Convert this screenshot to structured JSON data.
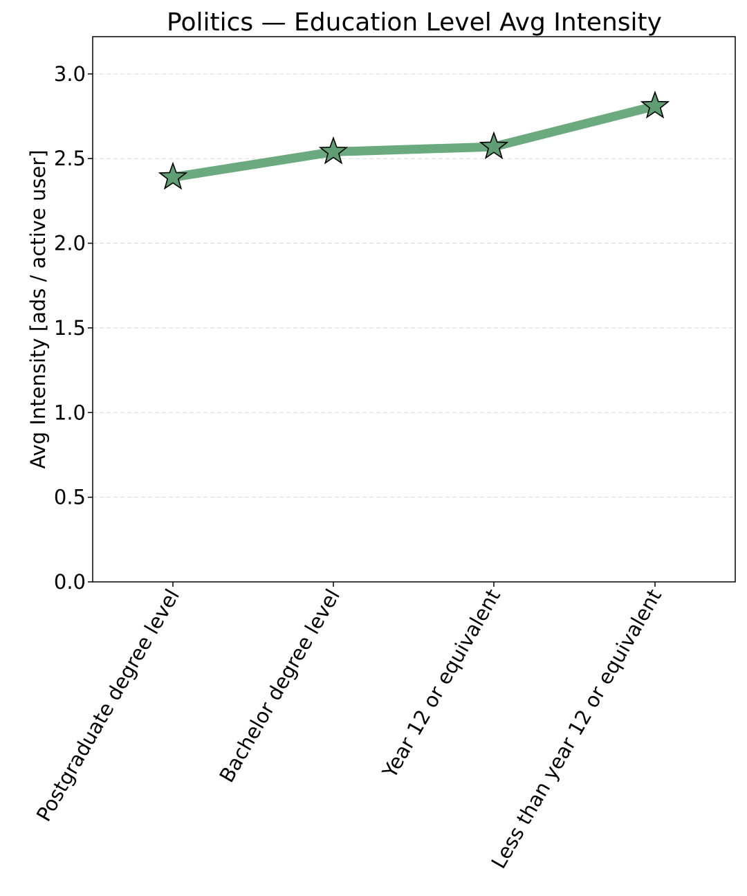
{
  "chart_data": {
    "type": "line",
    "title": "Politics — Education Level Avg Intensity",
    "xlabel": "",
    "ylabel": "Avg Intensity [ads / active user]",
    "categories": [
      "Postgraduate degree level",
      "Bachelor degree level",
      "Year 12 or equivalent",
      "Less than year 12 or equivalent"
    ],
    "series": [
      {
        "values": [
          2.39,
          2.54,
          2.57,
          2.81
        ],
        "color": "#6aaa7e",
        "marker": "star",
        "marker_color": "#5e9e72"
      }
    ],
    "ylim": [
      0,
      3.22
    ],
    "yticks": [
      0.0,
      0.5,
      1.0,
      1.5,
      2.0,
      2.5,
      3.0
    ],
    "ytick_labels": [
      "0.0",
      "0.5",
      "1.0",
      "1.5",
      "2.0",
      "2.5",
      "3.0"
    ],
    "grid": "horizontal-dashed",
    "legend": "none"
  }
}
